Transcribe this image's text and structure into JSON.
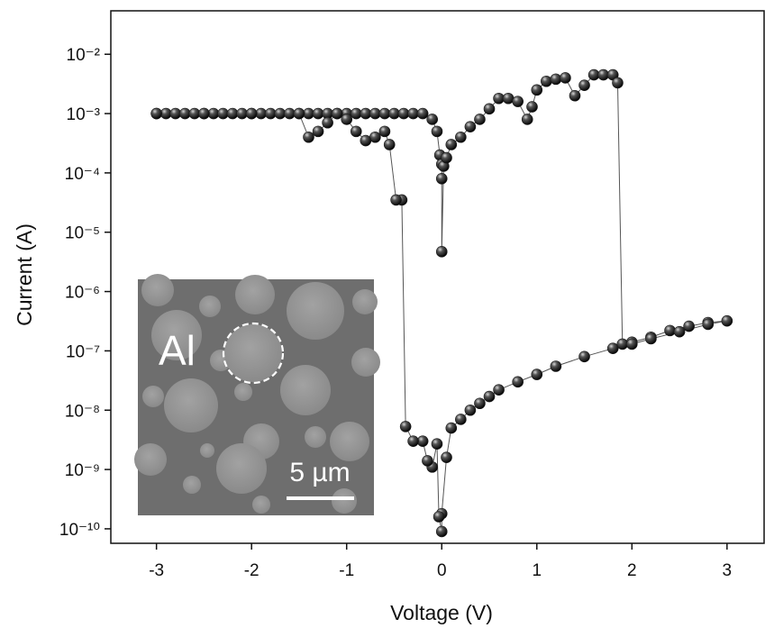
{
  "chart_data": {
    "type": "scatter",
    "log_y": true,
    "color": "#1a1a1a",
    "line_color": "#555555",
    "x_label": "Voltage (V)",
    "y_label": "Current (A)",
    "xlim": [
      -3.48,
      3.39
    ],
    "ylim": [
      5.7e-11,
      0.054
    ],
    "xticks": [
      -3,
      -2,
      -1,
      0,
      1,
      2,
      3
    ],
    "yticks": [
      {
        "value": 1e-10,
        "label": "10⁻¹⁰"
      },
      {
        "value": 1e-09,
        "label": "10⁻⁹"
      },
      {
        "value": 1e-08,
        "label": "10⁻⁸"
      },
      {
        "value": 1e-07,
        "label": "10⁻⁷"
      },
      {
        "value": 1e-06,
        "label": "10⁻⁶"
      },
      {
        "value": 1e-05,
        "label": "10⁻⁵"
      },
      {
        "value": 0.0001,
        "label": "10⁻⁴"
      },
      {
        "value": 0.001,
        "label": "10⁻³"
      },
      {
        "value": 0.01,
        "label": "10⁻²"
      }
    ],
    "x": [
      -3,
      -2.9,
      -2.8,
      -2.7,
      -2.6,
      -2.5,
      -2.4,
      -2.3,
      -2.2,
      -2.1,
      -2,
      -1.9,
      -1.8,
      -1.7,
      -1.6,
      -1.5,
      -1.4,
      -1.3,
      -1.2,
      -1.1,
      -1,
      -0.9,
      -0.8,
      -0.7,
      -0.6,
      -0.5,
      -0.4,
      -0.3,
      -0.2,
      -0.1,
      -0.05,
      -0.02,
      0,
      0,
      0,
      0.02,
      0.05,
      0.1,
      0.2,
      0.3,
      0.4,
      0.5,
      0.6,
      0.7,
      0.8,
      0.9,
      0.95,
      1.0,
      1.1,
      1.2,
      1.3,
      1.4,
      1.5,
      1.6,
      1.7,
      1.8,
      1.85,
      1.9,
      2.0,
      2.2,
      2.4,
      2.6,
      2.8,
      3.0,
      2.8,
      2.5,
      2.2,
      2.0,
      1.8,
      1.5,
      1.2,
      1.0,
      0.8,
      0.6,
      0.5,
      0.4,
      0.3,
      0.2,
      0.1,
      0.05,
      0,
      0,
      -0.03,
      -0.05,
      -0.1,
      -0.15,
      -0.2,
      -0.3,
      -0.38,
      -0.42,
      -0.48,
      -0.55,
      -0.6,
      -0.7,
      -0.8,
      -0.9,
      -1.0,
      -1.1,
      -1.2,
      -1.3,
      -1.4,
      -1.5,
      -2.0,
      -2.5,
      -3.0
    ],
    "values": [
      0.001,
      0.001,
      0.001,
      0.001,
      0.001,
      0.001,
      0.001,
      0.001,
      0.001,
      0.001,
      0.001,
      0.001,
      0.001,
      0.001,
      0.001,
      0.001,
      0.001,
      0.001,
      0.001,
      0.001,
      0.001,
      0.001,
      0.001,
      0.001,
      0.001,
      0.001,
      0.001,
      0.001,
      0.001,
      0.0008,
      0.0005,
      0.0002,
      0.00014,
      8e-05,
      4.7e-06,
      0.00013,
      0.00018,
      0.0003,
      0.0004,
      0.0006,
      0.0008,
      0.0012,
      0.0018,
      0.0018,
      0.0016,
      0.0008,
      0.0013,
      0.0025,
      0.0035,
      0.0038,
      0.004,
      0.002,
      0.003,
      0.0045,
      0.0045,
      0.0045,
      0.0033,
      1.3e-07,
      1.4e-07,
      1.7e-07,
      2.2e-07,
      2.6e-07,
      3e-07,
      3.2e-07,
      2.8e-07,
      2.1e-07,
      1.6e-07,
      1.3e-07,
      1.1e-07,
      8e-08,
      5.5e-08,
      4e-08,
      3e-08,
      2.2e-08,
      1.7e-08,
      1.3e-08,
      1e-08,
      7e-09,
      5e-09,
      1.6e-09,
      1.8e-10,
      9e-11,
      1.6e-10,
      2.7e-09,
      1.1e-09,
      1.4e-09,
      3e-09,
      3e-09,
      5.3e-09,
      3.5e-05,
      3.5e-05,
      0.0003,
      0.0005,
      0.0004,
      0.00035,
      0.0005,
      0.0008,
      0.001,
      0.0007,
      0.0005,
      0.0004,
      0.001,
      0.001,
      0.001,
      0.001
    ]
  },
  "inset": {
    "label": "Al",
    "scale_bar": "5 µm"
  }
}
